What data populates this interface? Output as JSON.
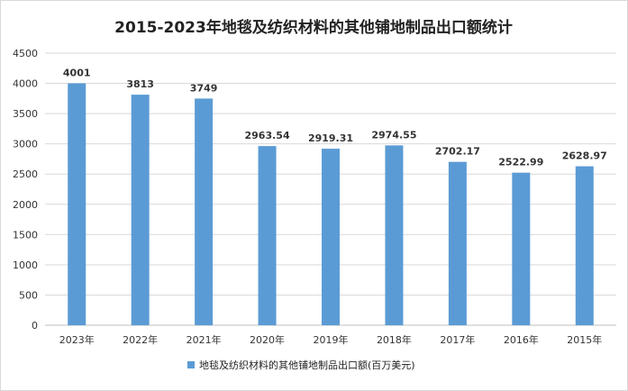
{
  "chart_data": {
    "type": "bar",
    "title": "2015-2023年地毯及纺织材料的其他铺地制品出口额统计",
    "categories": [
      "2023年",
      "2022年",
      "2021年",
      "2020年",
      "2019年",
      "2018年",
      "2017年",
      "2016年",
      "2015年"
    ],
    "series": [
      {
        "name": "地毯及纺织材料的其他铺地制品出口额(百万美元)",
        "values": [
          4001,
          3813,
          3749,
          2963.54,
          2919.31,
          2974.55,
          2702.17,
          2522.99,
          2628.97
        ],
        "labels": [
          "4001",
          "3813",
          "3749",
          "2963.54",
          "2919.31",
          "2974.55",
          "2702.17",
          "2522.99",
          "2628.97"
        ],
        "color": "#5b9bd5"
      }
    ],
    "ylim": [
      0,
      4500
    ],
    "yticks": [
      0,
      500,
      1000,
      1500,
      2000,
      2500,
      3000,
      3500,
      4000,
      4500
    ],
    "grid": true,
    "legend": "bottom"
  }
}
